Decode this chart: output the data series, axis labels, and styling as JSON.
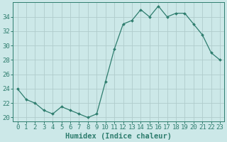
{
  "x": [
    0,
    1,
    2,
    3,
    4,
    5,
    6,
    7,
    8,
    9,
    10,
    11,
    12,
    13,
    14,
    15,
    16,
    17,
    18,
    19,
    20,
    21,
    22,
    23
  ],
  "y": [
    24,
    22.5,
    22,
    21,
    20.5,
    21.5,
    21,
    20.5,
    20,
    20.5,
    25,
    29.5,
    33,
    33.5,
    35,
    34,
    35.5,
    34,
    34.5,
    34.5,
    33,
    31.5,
    29,
    28
  ],
  "line_color": "#2e7d6e",
  "marker": "D",
  "marker_size": 2.0,
  "bg_color": "#cce8e8",
  "grid_color": "#b0cccc",
  "xlabel": "Humidex (Indice chaleur)",
  "ylabel_ticks": [
    20,
    22,
    24,
    26,
    28,
    30,
    32,
    34
  ],
  "ylim": [
    19.5,
    36
  ],
  "xlim": [
    -0.5,
    23.5
  ],
  "xlabel_fontsize": 7.5,
  "tick_fontsize": 6.5
}
